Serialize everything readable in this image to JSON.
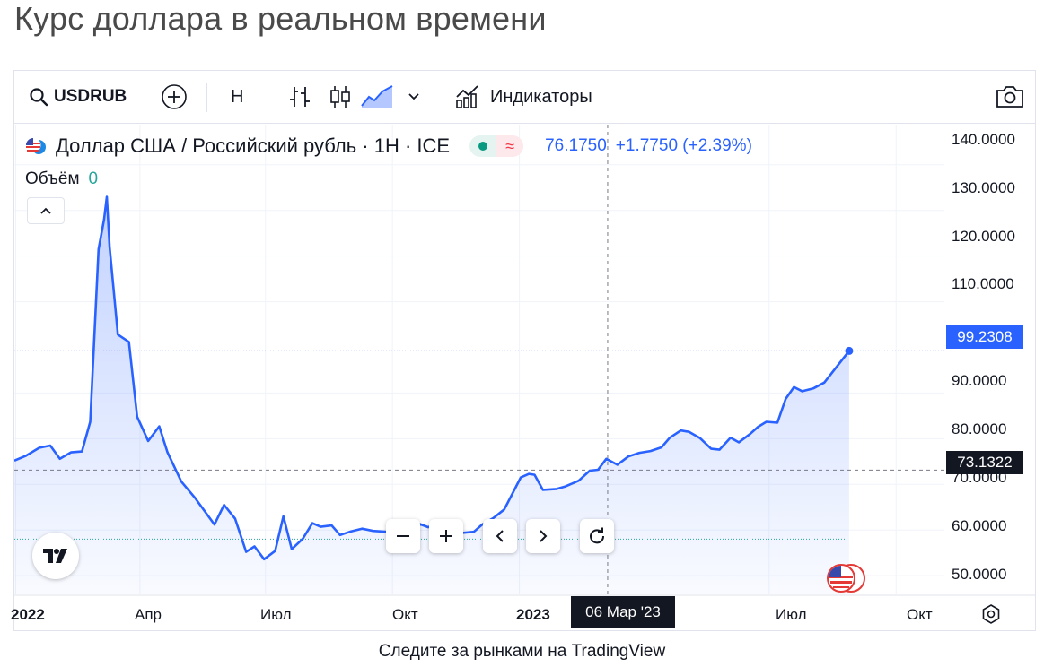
{
  "page_title": "Курс доллара в реальном времени",
  "toolbar": {
    "symbol": "USDRUB",
    "interval": "H",
    "indicators_label": "Индикаторы"
  },
  "legend": {
    "title": "Доллар США / Российский рубль · 1H · ICE",
    "last": "76.1750",
    "change": "+1.7750 (+2.39%)",
    "volume_label": "Объём",
    "volume_value": "0"
  },
  "price_tags": {
    "last_price": "99.2308",
    "crosshair_price": "73.1322",
    "crosshair_date": "06 Мар '23"
  },
  "footer": "Следите за рынками на TradingView",
  "colors": {
    "line": "#2962ff",
    "last_price_tag": "#2962ff",
    "crosshair_tag": "#131722",
    "up": "#089981",
    "down": "#f23645"
  },
  "icons": {
    "search": "search-icon",
    "add": "plus-circle-icon",
    "bars": "bar-chart-icon",
    "candles": "candlestick-icon",
    "area": "area-chart-icon",
    "chevron": "chevron-down-icon",
    "indicators": "indicators-icon",
    "camera": "camera-icon",
    "settings": "settings-icon"
  },
  "chart_data": {
    "type": "area",
    "title": "Доллар США / Российский рубль · 1H · ICE",
    "y_ticks": [
      "140.0000",
      "130.0000",
      "120.0000",
      "110.0000",
      "90.0000",
      "80.0000",
      "70.0000",
      "60.0000",
      "50.0000"
    ],
    "x_ticks": [
      {
        "label": "2022",
        "date": "2022-01-01"
      },
      {
        "label": "Апр",
        "date": "2022-04-01"
      },
      {
        "label": "Июл",
        "date": "2022-07-01"
      },
      {
        "label": "Окт",
        "date": "2022-10-01"
      },
      {
        "label": "2023",
        "date": "2023-01-01"
      },
      {
        "label": "Июл",
        "date": "2023-07-01"
      },
      {
        "label": "Окт",
        "date": "2023-10-01"
      }
    ],
    "ylim": [
      45.9,
      148.8
    ],
    "xlim": [
      "2021-12-31",
      "2023-11-05"
    ],
    "grid": true,
    "series": [
      {
        "points": [
          [
            "2021-12-31",
            75.2
          ],
          [
            "2022-01-08",
            76.2
          ],
          [
            "2022-01-18",
            78.0
          ],
          [
            "2022-01-26",
            78.5
          ],
          [
            "2022-02-02",
            75.6
          ],
          [
            "2022-02-10",
            77.0
          ],
          [
            "2022-02-18",
            77.2
          ],
          [
            "2022-02-24",
            83.7
          ],
          [
            "2022-03-02",
            121.5
          ],
          [
            "2022-03-06",
            128.0
          ],
          [
            "2022-03-08",
            133.0
          ],
          [
            "2022-03-10",
            122.0
          ],
          [
            "2022-03-16",
            102.8
          ],
          [
            "2022-03-24",
            101.2
          ],
          [
            "2022-03-30",
            84.8
          ],
          [
            "2022-04-07",
            79.5
          ],
          [
            "2022-04-15",
            82.7
          ],
          [
            "2022-04-21",
            77.0
          ],
          [
            "2022-05-01",
            70.6
          ],
          [
            "2022-05-11",
            67.0
          ],
          [
            "2022-05-25",
            61.2
          ],
          [
            "2022-06-01",
            65.5
          ],
          [
            "2022-06-09",
            62.5
          ],
          [
            "2022-06-17",
            55.2
          ],
          [
            "2022-06-23",
            56.4
          ],
          [
            "2022-06-30",
            53.6
          ],
          [
            "2022-07-08",
            55.4
          ],
          [
            "2022-07-14",
            63.0
          ],
          [
            "2022-07-20",
            55.8
          ],
          [
            "2022-07-28",
            58.1
          ],
          [
            "2022-08-04",
            61.5
          ],
          [
            "2022-08-10",
            60.7
          ],
          [
            "2022-08-18",
            61.0
          ],
          [
            "2022-08-24",
            58.9
          ],
          [
            "2022-09-01",
            59.7
          ],
          [
            "2022-09-09",
            60.3
          ],
          [
            "2022-09-17",
            59.8
          ],
          [
            "2022-09-27",
            59.6
          ],
          [
            "2022-10-01",
            58.4
          ],
          [
            "2022-10-07",
            58.8
          ],
          [
            "2022-10-15",
            60.4
          ],
          [
            "2022-10-21",
            61.3
          ],
          [
            "2022-10-27",
            60.6
          ],
          [
            "2022-11-03",
            61.5
          ],
          [
            "2022-11-09",
            61.6
          ],
          [
            "2022-11-15",
            60.3
          ],
          [
            "2022-11-21",
            59.4
          ],
          [
            "2022-11-29",
            59.6
          ],
          [
            "2022-12-05",
            61.2
          ],
          [
            "2022-12-13",
            62.6
          ],
          [
            "2022-12-21",
            64.5
          ],
          [
            "2022-12-27",
            68.0
          ],
          [
            "2023-01-02",
            71.5
          ],
          [
            "2023-01-08",
            72.3
          ],
          [
            "2023-01-12",
            72.1
          ],
          [
            "2023-01-18",
            68.8
          ],
          [
            "2023-01-28",
            69.0
          ],
          [
            "2023-02-03",
            69.5
          ],
          [
            "2023-02-13",
            70.8
          ],
          [
            "2023-02-21",
            73.0
          ],
          [
            "2023-02-27",
            73.2
          ],
          [
            "2023-03-05",
            75.6
          ],
          [
            "2023-03-13",
            74.3
          ],
          [
            "2023-03-21",
            76.1
          ],
          [
            "2023-03-29",
            76.9
          ],
          [
            "2023-04-06",
            77.3
          ],
          [
            "2023-04-14",
            78.1
          ],
          [
            "2023-04-20",
            80.2
          ],
          [
            "2023-04-28",
            81.8
          ],
          [
            "2023-05-04",
            81.5
          ],
          [
            "2023-05-12",
            80.1
          ],
          [
            "2023-05-20",
            77.8
          ],
          [
            "2023-05-26",
            77.6
          ],
          [
            "2023-06-03",
            80.2
          ],
          [
            "2023-06-09",
            79.2
          ],
          [
            "2023-06-17",
            81.0
          ],
          [
            "2023-06-23",
            82.6
          ],
          [
            "2023-06-29",
            83.7
          ],
          [
            "2023-07-07",
            83.5
          ],
          [
            "2023-07-13",
            88.7
          ],
          [
            "2023-07-19",
            91.3
          ],
          [
            "2023-07-25",
            90.4
          ],
          [
            "2023-08-02",
            91.0
          ],
          [
            "2023-08-10",
            92.3
          ],
          [
            "2023-08-28",
            99.23
          ]
        ]
      }
    ],
    "last_value": 99.2308,
    "crosshair": {
      "date": "2023-03-06",
      "value": 73.1322
    },
    "price_line": 58.0
  }
}
